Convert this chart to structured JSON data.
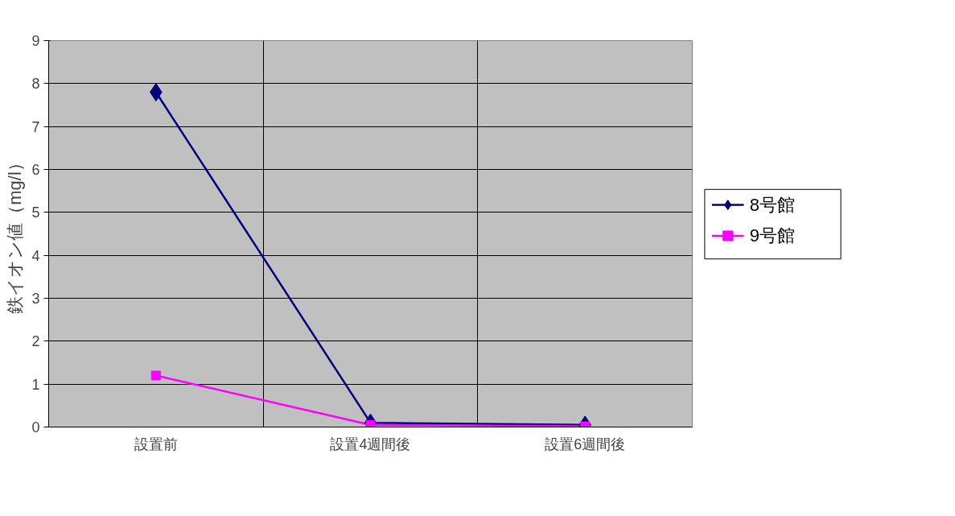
{
  "chart_data": {
    "type": "line",
    "ylabel": "鉄イオン値（mg/l）",
    "categories": [
      "設置前",
      "設置4週間後",
      "設置6週間後"
    ],
    "series": [
      {
        "name": "8号館",
        "color": "#000080",
        "marker": "diamond",
        "values": [
          7.8,
          0.1,
          0.05
        ]
      },
      {
        "name": "9号館",
        "color": "#ff00ff",
        "marker": "square",
        "values": [
          1.2,
          0.05,
          0.02
        ]
      }
    ],
    "ylim": [
      0,
      9
    ],
    "yticks": [
      0,
      1,
      2,
      3,
      4,
      5,
      6,
      7,
      8,
      9
    ],
    "grid": true,
    "legend": "right",
    "line_style": "solid"
  }
}
